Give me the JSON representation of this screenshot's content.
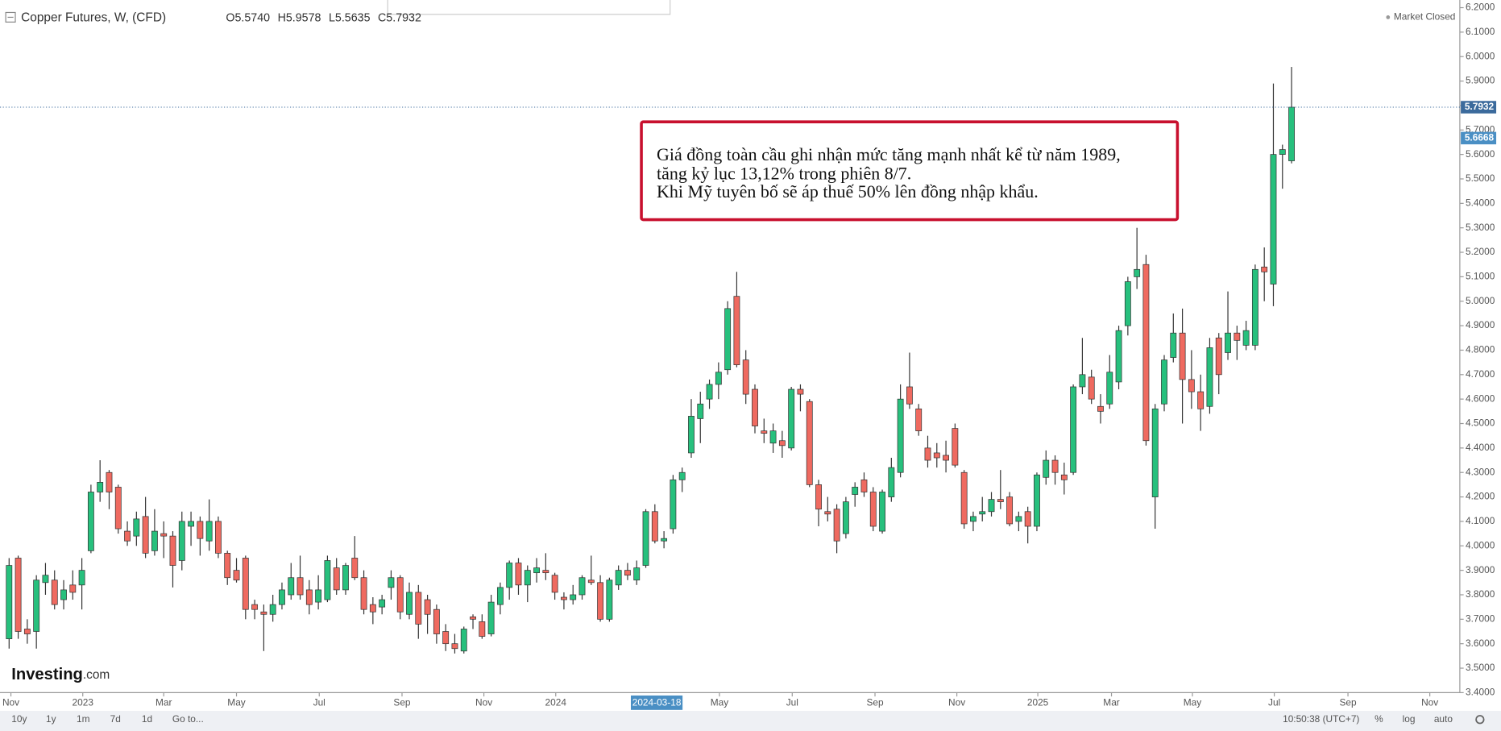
{
  "chart_data": {
    "type": "candlestick",
    "title": "Copper Futures, W, (CFD)",
    "ohlc": [
      "O5.5740",
      "H5.9578",
      "L5.5635",
      "C5.7932"
    ],
    "status": "Market Closed",
    "annotation": [
      "Giá đồng toàn cầu ghi nhận mức tăng mạnh nhất kể từ năm 1989,",
      "tăng kỷ lục 13,12% trong phiên 8/7.",
      "Khi  Mỹ tuyên bố sẽ áp thuế 50% lên đồng nhập khẩu."
    ],
    "logo": "Investing",
    "logo_suffix": ".com",
    "up_color": "#27c07d",
    "down_color": "#ef6a60",
    "candles": [
      [
        3.62,
        3.95,
        3.58,
        3.92
      ],
      [
        3.95,
        3.96,
        3.62,
        3.65
      ],
      [
        3.66,
        3.7,
        3.6,
        3.64
      ],
      [
        3.65,
        3.88,
        3.58,
        3.86
      ],
      [
        3.85,
        3.93,
        3.8,
        3.88
      ],
      [
        3.86,
        3.9,
        3.74,
        3.76
      ],
      [
        3.78,
        3.86,
        3.74,
        3.82
      ],
      [
        3.84,
        3.9,
        3.78,
        3.81
      ],
      [
        3.84,
        3.95,
        3.74,
        3.9
      ],
      [
        3.98,
        4.25,
        3.97,
        4.22
      ],
      [
        4.22,
        4.35,
        4.18,
        4.26
      ],
      [
        4.3,
        4.31,
        4.15,
        4.22
      ],
      [
        4.24,
        4.25,
        4.05,
        4.07
      ],
      [
        4.06,
        4.1,
        4.0,
        4.02
      ],
      [
        4.04,
        4.14,
        4.0,
        4.11
      ],
      [
        4.12,
        4.2,
        3.95,
        3.97
      ],
      [
        3.98,
        4.15,
        3.96,
        4.06
      ],
      [
        4.05,
        4.1,
        3.95,
        4.04
      ],
      [
        4.04,
        4.06,
        3.83,
        3.92
      ],
      [
        3.94,
        4.14,
        3.9,
        4.1
      ],
      [
        4.08,
        4.14,
        4.0,
        4.1
      ],
      [
        4.1,
        4.12,
        3.96,
        4.03
      ],
      [
        4.02,
        4.19,
        3.98,
        4.1
      ],
      [
        4.1,
        4.12,
        3.95,
        3.97
      ],
      [
        3.97,
        3.98,
        3.84,
        3.87
      ],
      [
        3.9,
        3.95,
        3.85,
        3.86
      ],
      [
        3.95,
        3.96,
        3.7,
        3.74
      ],
      [
        3.76,
        3.78,
        3.7,
        3.74
      ],
      [
        3.73,
        3.76,
        3.57,
        3.72
      ],
      [
        3.72,
        3.8,
        3.69,
        3.76
      ],
      [
        3.76,
        3.85,
        3.74,
        3.82
      ],
      [
        3.8,
        3.93,
        3.78,
        3.87
      ],
      [
        3.87,
        3.96,
        3.78,
        3.8
      ],
      [
        3.82,
        3.86,
        3.72,
        3.76
      ],
      [
        3.77,
        3.88,
        3.74,
        3.82
      ],
      [
        3.78,
        3.96,
        3.77,
        3.94
      ],
      [
        3.91,
        3.95,
        3.8,
        3.82
      ],
      [
        3.82,
        3.93,
        3.8,
        3.92
      ],
      [
        3.95,
        4.04,
        3.86,
        3.87
      ],
      [
        3.87,
        3.9,
        3.72,
        3.74
      ],
      [
        3.76,
        3.79,
        3.68,
        3.73
      ],
      [
        3.75,
        3.8,
        3.72,
        3.78
      ],
      [
        3.83,
        3.9,
        3.78,
        3.87
      ],
      [
        3.87,
        3.88,
        3.7,
        3.73
      ],
      [
        3.72,
        3.85,
        3.7,
        3.81
      ],
      [
        3.81,
        3.84,
        3.62,
        3.68
      ],
      [
        3.78,
        3.8,
        3.64,
        3.72
      ],
      [
        3.74,
        3.76,
        3.6,
        3.64
      ],
      [
        3.65,
        3.68,
        3.57,
        3.6
      ],
      [
        3.6,
        3.64,
        3.56,
        3.58
      ],
      [
        3.57,
        3.67,
        3.56,
        3.66
      ],
      [
        3.71,
        3.72,
        3.66,
        3.7
      ],
      [
        3.69,
        3.72,
        3.62,
        3.63
      ],
      [
        3.64,
        3.8,
        3.63,
        3.77
      ],
      [
        3.76,
        3.85,
        3.72,
        3.83
      ],
      [
        3.83,
        3.94,
        3.78,
        3.93
      ],
      [
        3.93,
        3.95,
        3.8,
        3.84
      ],
      [
        3.84,
        3.92,
        3.77,
        3.9
      ],
      [
        3.89,
        3.95,
        3.85,
        3.91
      ],
      [
        3.9,
        3.97,
        3.86,
        3.89
      ],
      [
        3.88,
        3.89,
        3.78,
        3.81
      ],
      [
        3.79,
        3.81,
        3.74,
        3.78
      ],
      [
        3.78,
        3.84,
        3.76,
        3.8
      ],
      [
        3.8,
        3.88,
        3.78,
        3.87
      ],
      [
        3.86,
        3.96,
        3.84,
        3.85
      ],
      [
        3.85,
        3.88,
        3.69,
        3.7
      ],
      [
        3.7,
        3.87,
        3.69,
        3.86
      ],
      [
        3.84,
        3.92,
        3.82,
        3.9
      ],
      [
        3.9,
        3.93,
        3.86,
        3.88
      ],
      [
        3.86,
        3.94,
        3.84,
        3.91
      ],
      [
        3.92,
        4.15,
        3.91,
        4.14
      ],
      [
        4.14,
        4.17,
        4.01,
        4.02
      ],
      [
        4.02,
        4.06,
        3.99,
        4.03
      ],
      [
        4.07,
        4.29,
        4.05,
        4.27
      ],
      [
        4.27,
        4.32,
        4.22,
        4.3
      ],
      [
        4.38,
        4.6,
        4.36,
        4.53
      ],
      [
        4.52,
        4.63,
        4.42,
        4.58
      ],
      [
        4.6,
        4.68,
        4.56,
        4.66
      ],
      [
        4.66,
        4.75,
        4.6,
        4.71
      ],
      [
        4.72,
        5.0,
        4.7,
        4.97
      ],
      [
        5.02,
        5.12,
        4.73,
        4.74
      ],
      [
        4.76,
        4.8,
        4.58,
        4.62
      ],
      [
        4.64,
        4.66,
        4.46,
        4.49
      ],
      [
        4.47,
        4.52,
        4.42,
        4.46
      ],
      [
        4.42,
        4.5,
        4.38,
        4.47
      ],
      [
        4.43,
        4.47,
        4.36,
        4.41
      ],
      [
        4.4,
        4.65,
        4.39,
        4.64
      ],
      [
        4.64,
        4.66,
        4.55,
        4.62
      ],
      [
        4.59,
        4.6,
        4.24,
        4.25
      ],
      [
        4.25,
        4.27,
        4.08,
        4.15
      ],
      [
        4.14,
        4.2,
        4.1,
        4.13
      ],
      [
        4.15,
        4.17,
        3.97,
        4.02
      ],
      [
        4.05,
        4.2,
        4.03,
        4.18
      ],
      [
        4.21,
        4.26,
        4.16,
        4.24
      ],
      [
        4.27,
        4.3,
        4.2,
        4.22
      ],
      [
        4.22,
        4.24,
        4.06,
        4.08
      ],
      [
        4.06,
        4.23,
        4.05,
        4.22
      ],
      [
        4.2,
        4.36,
        4.18,
        4.32
      ],
      [
        4.3,
        4.66,
        4.28,
        4.6
      ],
      [
        4.65,
        4.79,
        4.56,
        4.58
      ],
      [
        4.56,
        4.58,
        4.45,
        4.47
      ],
      [
        4.4,
        4.45,
        4.32,
        4.35
      ],
      [
        4.38,
        4.42,
        4.32,
        4.36
      ],
      [
        4.37,
        4.43,
        4.3,
        4.35
      ],
      [
        4.48,
        4.5,
        4.32,
        4.33
      ],
      [
        4.3,
        4.31,
        4.07,
        4.09
      ],
      [
        4.1,
        4.14,
        4.06,
        4.12
      ],
      [
        4.13,
        4.2,
        4.1,
        4.14
      ],
      [
        4.14,
        4.22,
        4.12,
        4.19
      ],
      [
        4.19,
        4.31,
        4.15,
        4.18
      ],
      [
        4.2,
        4.22,
        4.08,
        4.09
      ],
      [
        4.1,
        4.14,
        4.06,
        4.12
      ],
      [
        4.14,
        4.16,
        4.01,
        4.08
      ],
      [
        4.08,
        4.3,
        4.06,
        4.29
      ],
      [
        4.28,
        4.39,
        4.25,
        4.35
      ],
      [
        4.35,
        4.37,
        4.25,
        4.3
      ],
      [
        4.29,
        4.34,
        4.21,
        4.27
      ],
      [
        4.3,
        4.66,
        4.29,
        4.65
      ],
      [
        4.65,
        4.85,
        4.62,
        4.7
      ],
      [
        4.69,
        4.72,
        4.58,
        4.6
      ],
      [
        4.57,
        4.62,
        4.5,
        4.55
      ],
      [
        4.58,
        4.78,
        4.56,
        4.71
      ],
      [
        4.67,
        4.9,
        4.64,
        4.88
      ],
      [
        4.9,
        5.1,
        4.86,
        5.08
      ],
      [
        5.1,
        5.3,
        5.05,
        5.13
      ],
      [
        5.15,
        5.19,
        4.41,
        4.43
      ],
      [
        4.2,
        4.58,
        4.07,
        4.56
      ],
      [
        4.58,
        4.78,
        4.55,
        4.76
      ],
      [
        4.77,
        4.95,
        4.75,
        4.87
      ],
      [
        4.87,
        4.97,
        4.5,
        4.68
      ],
      [
        4.68,
        4.8,
        4.56,
        4.63
      ],
      [
        4.63,
        4.7,
        4.47,
        4.56
      ],
      [
        4.57,
        4.85,
        4.54,
        4.81
      ],
      [
        4.85,
        4.87,
        4.62,
        4.7
      ],
      [
        4.79,
        5.04,
        4.76,
        4.87
      ],
      [
        4.87,
        4.9,
        4.76,
        4.84
      ],
      [
        4.82,
        4.92,
        4.8,
        4.88
      ],
      [
        4.82,
        5.15,
        4.8,
        5.13
      ],
      [
        5.14,
        5.22,
        5.0,
        5.12
      ],
      [
        5.07,
        5.89,
        4.98,
        5.6
      ],
      [
        5.6,
        5.64,
        5.46,
        5.62
      ],
      [
        5.574,
        5.9578,
        5.5635,
        5.7932
      ]
    ],
    "xlim": [
      -1,
      159.5
    ],
    "xticks": [
      {
        "value": 0.2,
        "label": "Nov"
      },
      {
        "value": 8.1,
        "label": "2023"
      },
      {
        "value": 17,
        "label": "Mar"
      },
      {
        "value": 25,
        "label": "May"
      },
      {
        "value": 34.1,
        "label": "Jul"
      },
      {
        "value": 43.2,
        "label": "Sep"
      },
      {
        "value": 52.2,
        "label": "Nov"
      },
      {
        "value": 60.1,
        "label": "2024"
      },
      {
        "value": 78.1,
        "label": "May"
      },
      {
        "value": 86.1,
        "label": "Jul"
      },
      {
        "value": 95.2,
        "label": "Sep"
      },
      {
        "value": 104.2,
        "label": "Nov"
      },
      {
        "value": 113.1,
        "label": "2025"
      },
      {
        "value": 121.2,
        "label": "Mar"
      },
      {
        "value": 130.1,
        "label": "May"
      },
      {
        "value": 139.1,
        "label": "Jul"
      },
      {
        "value": 147.2,
        "label": "Sep"
      },
      {
        "value": 156.2,
        "label": "Nov"
      }
    ],
    "crosshair_x": {
      "value": 71.2,
      "label": "2024-03-18"
    },
    "ylim": [
      3.4,
      6.2
    ],
    "yticks": [
      {
        "value": 3.4,
        "label": "3.4000"
      },
      {
        "value": 3.5,
        "label": "3.5000"
      },
      {
        "value": 3.6,
        "label": "3.6000"
      },
      {
        "value": 3.7,
        "label": "3.7000"
      },
      {
        "value": 3.8,
        "label": "3.8000"
      },
      {
        "value": 3.9,
        "label": "3.9000"
      },
      {
        "value": 4.0,
        "label": "4.0000"
      },
      {
        "value": 4.1,
        "label": "4.1000"
      },
      {
        "value": 4.2,
        "label": "4.2000"
      },
      {
        "value": 4.3,
        "label": "4.3000"
      },
      {
        "value": 4.4,
        "label": "4.4000"
      },
      {
        "value": 4.5,
        "label": "4.5000"
      },
      {
        "value": 4.6,
        "label": "4.6000"
      },
      {
        "value": 4.7,
        "label": "4.7000"
      },
      {
        "value": 4.8,
        "label": "4.8000"
      },
      {
        "value": 4.9,
        "label": "4.9000"
      },
      {
        "value": 5.0,
        "label": "5.0000"
      },
      {
        "value": 5.1,
        "label": "5.1000"
      },
      {
        "value": 5.2,
        "label": "5.2000"
      },
      {
        "value": 5.3,
        "label": "5.3000"
      },
      {
        "value": 5.4,
        "label": "5.4000"
      },
      {
        "value": 5.5,
        "label": "5.5000"
      },
      {
        "value": 5.6,
        "label": "5.6000"
      },
      {
        "value": 5.7,
        "label": "5.7000"
      },
      {
        "value": 5.8,
        "label": "5.8000"
      },
      {
        "value": 5.9,
        "label": "5.9000"
      },
      {
        "value": 6.0,
        "label": "6.0000"
      },
      {
        "value": 6.1,
        "label": "6.1000"
      },
      {
        "value": 6.2,
        "label": "6.2000"
      }
    ],
    "last_price": {
      "value": 5.7932,
      "label": "5.7932",
      "color": "#3b6a9c"
    },
    "price_marker": {
      "value": 5.6668,
      "label": "5.6668",
      "color": "#4a8fc4"
    },
    "grid": false,
    "toolbar": [
      "10y",
      "1y",
      "1m",
      "7d",
      "1d",
      "Go to..."
    ],
    "clock": "10:50:38 (UTC+7)",
    "options": [
      "%",
      "log",
      "auto"
    ]
  }
}
